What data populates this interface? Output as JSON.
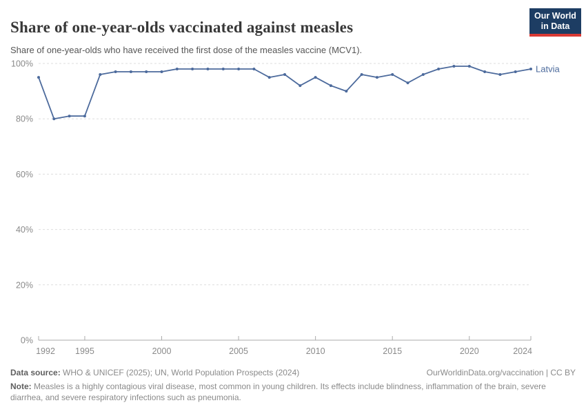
{
  "header": {
    "title": "Share of one-year-olds vaccinated against measles",
    "subtitle": "Share of one-year-olds who have received the first dose of the measles vaccine (MCV1).",
    "logo_line1": "Our World",
    "logo_line2": "in Data"
  },
  "chart_data": {
    "type": "line",
    "x": [
      1992,
      1993,
      1994,
      1995,
      1996,
      1997,
      1998,
      1999,
      2000,
      2001,
      2002,
      2003,
      2004,
      2005,
      2006,
      2007,
      2008,
      2009,
      2010,
      2011,
      2012,
      2013,
      2014,
      2015,
      2016,
      2017,
      2018,
      2019,
      2020,
      2021,
      2022,
      2023,
      2024
    ],
    "series": [
      {
        "name": "Latvia",
        "color": "#4c6a9c",
        "values": [
          95,
          80,
          81,
          81,
          96,
          97,
          97,
          97,
          97,
          98,
          98,
          98,
          98,
          98,
          98,
          95,
          96,
          92,
          95,
          92,
          90,
          96,
          95,
          96,
          93,
          96,
          98,
          99,
          99,
          97,
          96,
          97,
          98
        ]
      }
    ],
    "title": "Share of one-year-olds vaccinated against measles",
    "xlabel": "",
    "ylabel": "",
    "xlim": [
      1992,
      2024
    ],
    "ylim": [
      0,
      100
    ],
    "grid": true,
    "legend_position": "right-of-line-end",
    "x_ticks": [
      {
        "value": 1992,
        "label": "1992"
      },
      {
        "value": 1995,
        "label": "1995"
      },
      {
        "value": 2000,
        "label": "2000"
      },
      {
        "value": 2005,
        "label": "2005"
      },
      {
        "value": 2010,
        "label": "2010"
      },
      {
        "value": 2015,
        "label": "2015"
      },
      {
        "value": 2020,
        "label": "2020"
      },
      {
        "value": 2024,
        "label": "2024"
      }
    ],
    "y_ticks": [
      {
        "value": 0,
        "label": "0%"
      },
      {
        "value": 20,
        "label": "20%"
      },
      {
        "value": 40,
        "label": "40%"
      },
      {
        "value": 60,
        "label": "60%"
      },
      {
        "value": 80,
        "label": "80%"
      },
      {
        "value": 100,
        "label": "100%"
      }
    ]
  },
  "footer": {
    "data_source_label": "Data source:",
    "data_source_text": " WHO & UNICEF (2025); UN, World Population Prospects (2024)",
    "link_text": "OurWorldinData.org/vaccination",
    "license_text": " | CC BY",
    "note_label": "Note:",
    "note_text": " Measles is a highly contagious viral disease, most common in young children. Its effects include blindness, inflammation of the brain, severe diarrhea, and severe respiratory infections such as pneumonia."
  },
  "colors": {
    "series_line": "#4c6a9c",
    "gridline": "#dddddd",
    "axis_line": "#ababab",
    "tick_label": "#8a8a8a",
    "logo_bg": "#1d3d63",
    "logo_bar": "#d93a34",
    "title_text": "#383838",
    "subtitle_text": "#555555",
    "footer_text": "#8a8a8a"
  }
}
